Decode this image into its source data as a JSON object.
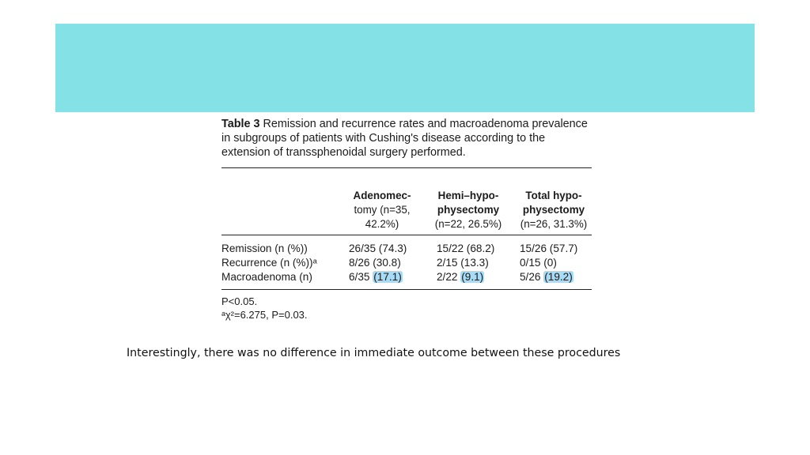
{
  "caption": {
    "label": "Table 3",
    "text": " Remission and recurrence rates and macroadenoma prevalence in subgroups of patients with Cushing's disease according to the extension of transsphenoidal surgery performed."
  },
  "columns": [
    {
      "line1": "Adenomec-",
      "line2": "tomy (n=35, 42.2%)"
    },
    {
      "line1": "Hemi–hypo-physectomy",
      "line2": "(n=22, 26.5%)"
    },
    {
      "line1": "Total hypo-physectomy",
      "line2": "(n=26, 31.3%)"
    }
  ],
  "rows": [
    {
      "label": "Remission (n (%))",
      "cells": [
        "26/35 (74.3)",
        "15/22 (68.2)",
        "15/26 (57.7)"
      ]
    },
    {
      "label": "Recurrence (n (%))ᵃ",
      "cells": [
        "8/26 (30.8)",
        "2/15 (13.3)",
        "0/15 (0)"
      ]
    },
    {
      "label": "Macroadenoma (n)",
      "cells": [
        "6/35",
        "2/22",
        "5/26"
      ],
      "highlights": [
        "(17.1)",
        "(9.1)",
        "(19.2)"
      ]
    }
  ],
  "footnotes": [
    "P<0.05.",
    "ᵃχ²=6.275, P=0.03."
  ],
  "note": "Interestingly, there was no difference in immediate outcome between these procedures",
  "colors": {
    "banner": "#84e1e6",
    "highlight": "#a8dcf6"
  }
}
